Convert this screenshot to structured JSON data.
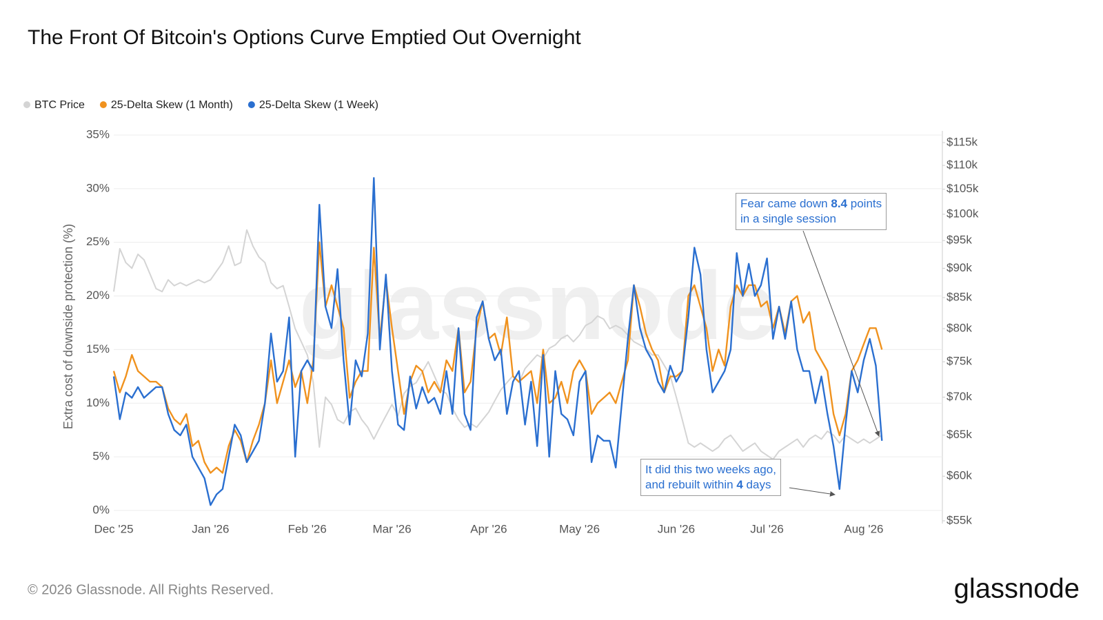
{
  "chart_data": {
    "type": "line",
    "title": "The Front Of Bitcoin's Options Curve Emptied Out Overnight",
    "y_label": "Extra cost of downside protection (%)",
    "watermark": "glassnode",
    "footer": "© 2026 Glassnode. All Rights Reserved.",
    "logo": "glassnode",
    "grid": true,
    "y2scale": "log",
    "ylim": [
      0,
      35
    ],
    "yticks": [
      {
        "value": 0,
        "label": "0%"
      },
      {
        "value": 5,
        "label": "5%"
      },
      {
        "value": 10,
        "label": "10%"
      },
      {
        "value": 15,
        "label": "15%"
      },
      {
        "value": 20,
        "label": "20%"
      },
      {
        "value": 25,
        "label": "25%"
      },
      {
        "value": 30,
        "label": "30%"
      },
      {
        "value": 35,
        "label": "35%"
      }
    ],
    "y2lim": [
      55000,
      115000
    ],
    "y2ticks": [
      {
        "value": 55000,
        "label": "$55k"
      },
      {
        "value": 60000,
        "label": "$60k"
      },
      {
        "value": 65000,
        "label": "$65k"
      },
      {
        "value": 70000,
        "label": "$70k"
      },
      {
        "value": 75000,
        "label": "$75k"
      },
      {
        "value": 80000,
        "label": "$80k"
      },
      {
        "value": 85000,
        "label": "$85k"
      },
      {
        "value": 90000,
        "label": "$90k"
      },
      {
        "value": 95000,
        "label": "$95k"
      },
      {
        "value": 100000,
        "label": "$100k"
      },
      {
        "value": 105000,
        "label": "$105k"
      },
      {
        "value": 110000,
        "label": "$110k"
      },
      {
        "value": 115000,
        "label": "$115k"
      }
    ],
    "categories": [
      "Dec '25",
      null,
      null,
      null,
      null,
      null,
      null,
      null,
      null,
      null,
      null,
      null,
      null,
      null,
      null,
      null,
      "Jan '26",
      null,
      null,
      null,
      null,
      null,
      null,
      null,
      null,
      null,
      null,
      null,
      null,
      null,
      null,
      null,
      "Feb '26",
      null,
      null,
      null,
      null,
      null,
      null,
      null,
      null,
      null,
      null,
      null,
      null,
      null,
      "Mar '26",
      null,
      null,
      null,
      null,
      null,
      null,
      null,
      null,
      null,
      null,
      null,
      null,
      null,
      null,
      null,
      "Apr '26",
      null,
      null,
      null,
      null,
      null,
      null,
      null,
      null,
      null,
      null,
      null,
      null,
      null,
      null,
      "May '26",
      null,
      null,
      null,
      null,
      null,
      null,
      null,
      null,
      null,
      null,
      null,
      null,
      null,
      null,
      null,
      "Jun '26",
      null,
      null,
      null,
      null,
      null,
      null,
      null,
      null,
      null,
      null,
      null,
      null,
      null,
      null,
      "Jul '26",
      null,
      null,
      null,
      null,
      null,
      null,
      null,
      null,
      null,
      null,
      null,
      null,
      null,
      null,
      null,
      "Aug '26",
      null,
      null,
      null,
      null,
      null,
      null,
      null,
      null,
      null,
      null,
      null,
      null,
      null
    ],
    "series": [
      {
        "name": "BTC Price",
        "color": "#d4d4d4",
        "axis": "y2",
        "values": [
          86000,
          93500,
          91000,
          90000,
          92500,
          91500,
          89000,
          86500,
          86000,
          88000,
          87000,
          87500,
          87000,
          87500,
          88000,
          87500,
          88000,
          89500,
          91000,
          94000,
          90500,
          91000,
          97000,
          94000,
          92000,
          91000,
          87500,
          86500,
          87000,
          83500,
          80000,
          78000,
          76000,
          72000,
          63500,
          70000,
          69000,
          67000,
          66500,
          68000,
          68500,
          67000,
          66000,
          64500,
          66000,
          67500,
          69000,
          67500,
          70500,
          71500,
          72000,
          73500,
          75000,
          73000,
          71000,
          70500,
          68500,
          67000,
          66000,
          66500,
          66000,
          67000,
          68000,
          69500,
          71000,
          72000,
          73000,
          72000,
          74000,
          75000,
          76000,
          75500,
          77000,
          77500,
          78500,
          79000,
          78000,
          79000,
          80500,
          81000,
          82000,
          81500,
          80000,
          80500,
          80000,
          79000,
          78000,
          77500,
          77000,
          76000,
          76000,
          74500,
          73000,
          70000,
          67000,
          64000,
          63500,
          64000,
          63500,
          63000,
          63500,
          64500,
          65000,
          64000,
          63000,
          63500,
          64000,
          63000,
          62500,
          62000,
          63000,
          63500,
          64000,
          64500,
          63500,
          64500,
          65000,
          64500,
          65500,
          65000,
          64000,
          65000,
          64500,
          64000,
          64500,
          64000,
          64500,
          65000,
          null,
          null,
          null,
          null,
          null,
          null,
          null,
          null,
          null,
          null
        ]
      },
      {
        "name": "25-Delta Skew (1 Month)",
        "color": "#f0921e",
        "values": [
          13,
          11,
          12.5,
          14.5,
          13,
          12.5,
          12,
          12,
          11.5,
          9.5,
          8.5,
          8,
          9,
          6,
          6.5,
          4.5,
          3.5,
          4,
          3.5,
          6,
          7.5,
          6.5,
          4.5,
          6.5,
          8,
          10,
          14,
          10,
          12,
          14,
          11.5,
          13,
          10,
          14,
          25,
          19,
          21,
          19,
          17,
          10.5,
          12,
          13,
          13,
          24.5,
          16,
          21.5,
          17,
          13,
          9,
          12,
          13.5,
          13,
          11,
          12,
          11,
          14,
          13,
          17,
          11,
          12,
          17,
          19.5,
          16,
          16.5,
          14.5,
          18,
          12.5,
          12,
          12.5,
          13,
          10,
          15,
          10,
          10.5,
          12,
          10,
          13,
          14,
          13,
          9,
          10,
          10.5,
          11,
          10,
          12,
          14,
          21,
          19,
          16.5,
          15,
          14,
          11,
          12.5,
          12.5,
          13,
          20,
          21,
          19,
          17,
          13,
          15,
          13.5,
          19,
          21,
          20,
          21,
          21,
          19,
          19.5,
          17,
          19,
          16.5,
          19.5,
          20,
          17.5,
          18.5,
          15,
          14,
          13,
          9,
          7,
          9,
          13,
          14,
          15.5,
          17,
          17,
          15,
          null,
          null,
          null,
          null,
          null,
          null,
          null,
          null,
          null,
          null
        ]
      },
      {
        "name": "25-Delta Skew (1 Week)",
        "color": "#2a6fd0",
        "values": [
          12.5,
          8.5,
          11,
          10.5,
          11.5,
          10.5,
          11,
          11.5,
          11.5,
          9,
          7.5,
          7,
          8,
          5,
          4,
          3,
          0.5,
          1.5,
          2,
          5,
          8,
          7,
          4.5,
          5.5,
          6.5,
          10,
          16.5,
          12,
          13,
          18,
          5,
          13,
          14,
          13,
          28.5,
          19,
          17,
          22.5,
          14,
          8,
          14,
          12.5,
          16.5,
          31,
          15,
          22,
          13,
          8,
          7.5,
          12.5,
          9.5,
          11.5,
          10,
          10.5,
          9,
          13,
          9,
          17,
          9,
          7.5,
          18,
          19.5,
          16,
          14,
          15,
          9,
          12,
          13,
          8,
          12,
          6,
          14.5,
          5,
          13,
          9,
          8.5,
          7,
          12,
          13,
          4.5,
          7,
          6.5,
          6.5,
          4,
          10,
          16,
          21,
          17,
          15,
          14,
          12,
          11,
          13.5,
          12,
          13,
          18,
          24.5,
          22,
          15,
          11,
          12,
          13,
          15,
          24,
          20,
          23,
          20,
          21,
          23.5,
          16,
          19,
          16,
          19.5,
          15,
          13,
          13,
          10,
          12.5,
          9,
          6,
          2,
          8,
          13,
          11,
          14,
          16,
          13.5,
          6.5,
          null,
          null,
          null,
          null,
          null,
          null,
          null,
          null,
          null,
          null
        ]
      }
    ],
    "annotations": [
      {
        "lines": [
          [
            "Fear came down",
            "8.4",
            "points"
          ],
          [
            "in a single session"
          ]
        ]
      },
      {
        "lines": [
          [
            "It did this two weeks ago,"
          ],
          [
            "and rebuilt within",
            "4",
            "days"
          ]
        ]
      }
    ]
  }
}
